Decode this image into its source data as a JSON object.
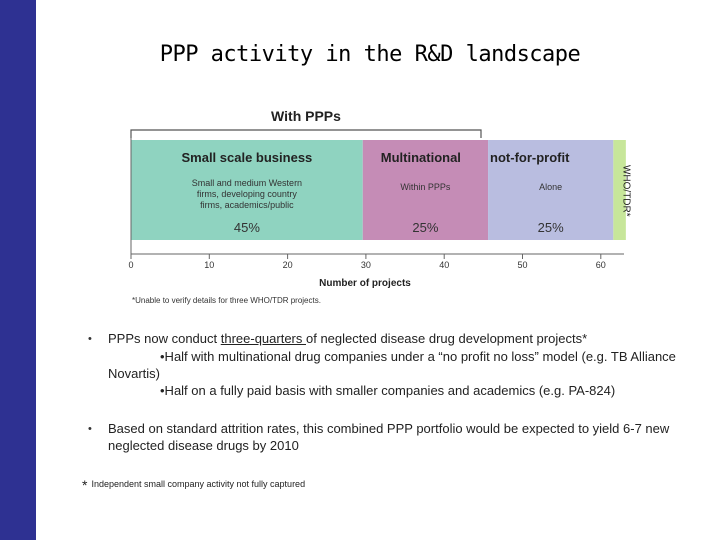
{
  "slide": {
    "title": "PPP activity in the R&D landscape"
  },
  "chart_data": {
    "type": "bar",
    "orientation": "horizontal-stacked",
    "bracket_label": "With PPPs",
    "bracket_range": [
      0,
      45
    ],
    "segments": [
      {
        "name": "Small scale business",
        "subtitle": "Small and medium Western firms, developing country firms, academics/public",
        "pct": "45%",
        "start": 0,
        "end": 29.6,
        "color": "#8fd3c0"
      },
      {
        "name": "Multinational",
        "subtitle": "Within PPPs",
        "pct": "25%",
        "start": 29.6,
        "end": 45.6,
        "color": "#c58cb6"
      },
      {
        "name": "not-for-profit",
        "subtitle": "Alone",
        "pct": "25%",
        "start": 45.6,
        "end": 61.6,
        "color": "#b9bde0"
      },
      {
        "name": "WHO/TDR*",
        "subtitle": "",
        "pct": "",
        "start": 61.6,
        "end": 63.2,
        "color": "#c7e69a"
      }
    ],
    "xlabel": "Number of projects",
    "xticks": [
      "0",
      "10",
      "20",
      "30",
      "40",
      "50",
      "60"
    ],
    "xlim": [
      0,
      63
    ],
    "note": "*Unable to verify details for three WHO/TDR projects."
  },
  "bullets": {
    "b1_pre": "PPPs now conduct ",
    "b1_underline": "three-quarters ",
    "b1_post": "of neglected disease drug development projects*",
    "b1_sub1": "•Half with multinational drug companies under a “no profit no loss” model (e.g. TB Alliance Novartis)",
    "b1_sub2": "•Half on a fully paid basis with smaller companies and academics (e.g. PA-824)",
    "b2": "Based on standard attrition rates, this combined PPP portfolio would be expected to yield 6-7 new neglected disease drugs by 2010",
    "marker": "•"
  },
  "footnote": {
    "star": "*",
    "text": "Independent small company activity not fully captured"
  }
}
